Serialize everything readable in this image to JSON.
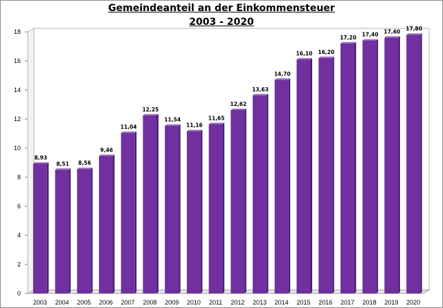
{
  "chart_data": {
    "type": "bar",
    "title_line1": "Gemeindeanteil an der Einkommensteuer",
    "title_line2": "2003 - 2020",
    "categories": [
      "2003",
      "2004",
      "2005",
      "2006",
      "2007",
      "2008",
      "2009",
      "2010",
      "2011",
      "2012",
      "2013",
      "2014",
      "2015",
      "2016",
      "2017",
      "2018",
      "2019",
      "2020"
    ],
    "values": [
      8.93,
      8.51,
      8.56,
      9.46,
      11.04,
      12.25,
      11.54,
      11.16,
      11.65,
      12.62,
      13.63,
      14.7,
      16.1,
      16.2,
      17.2,
      17.4,
      17.6,
      17.8
    ],
    "value_labels": [
      "8,93",
      "8,51",
      "8,56",
      "9,46",
      "11,04",
      "12,25",
      "11,54",
      "11,16",
      "11,65",
      "12,62",
      "13,63",
      "14,70",
      "16,10",
      "16,20",
      "17,20",
      "17,40",
      "17,60",
      "17,80"
    ],
    "y_ticks": [
      "0",
      "2",
      "4",
      "6",
      "8",
      "10",
      "12",
      "14",
      "16",
      "18"
    ],
    "ylim": [
      0,
      18
    ],
    "grid": false,
    "bar_color": "#7030a0"
  }
}
